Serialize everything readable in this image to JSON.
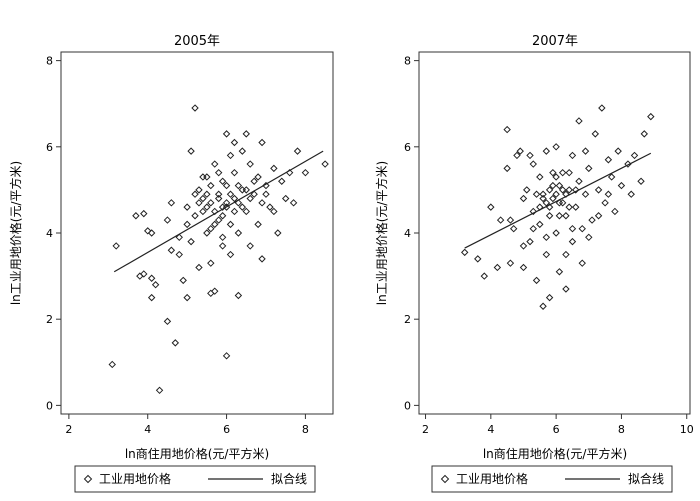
{
  "chart_data": [
    {
      "type": "scatter",
      "title": "2005年",
      "xlabel": "ln商住用地价格(元/平方米)",
      "ylabel": "ln工业用地价格(元/平方米)",
      "xlim": [
        1.8,
        8.7
      ],
      "ylim": [
        -0.2,
        8.2
      ],
      "xticks": [
        2,
        4,
        6,
        8
      ],
      "yticks": [
        0,
        2,
        4,
        6,
        8
      ],
      "series": [
        {
          "name": "工业用地价格",
          "kind": "points",
          "points": [
            [
              3.1,
              0.95
            ],
            [
              3.2,
              3.7
            ],
            [
              3.7,
              4.4
            ],
            [
              3.9,
              4.45
            ],
            [
              4.0,
              4.05
            ],
            [
              4.1,
              4.0
            ],
            [
              3.8,
              3.0
            ],
            [
              3.9,
              3.05
            ],
            [
              4.1,
              2.95
            ],
            [
              4.2,
              2.8
            ],
            [
              4.1,
              2.5
            ],
            [
              4.3,
              0.35
            ],
            [
              4.5,
              1.95
            ],
            [
              4.7,
              1.45
            ],
            [
              4.6,
              3.6
            ],
            [
              4.5,
              4.3
            ],
            [
              4.6,
              4.7
            ],
            [
              4.8,
              3.5
            ],
            [
              4.9,
              2.9
            ],
            [
              5.0,
              2.5
            ],
            [
              4.8,
              3.9
            ],
            [
              5.0,
              4.6
            ],
            [
              5.1,
              5.9
            ],
            [
              5.2,
              6.9
            ],
            [
              5.3,
              5.0
            ],
            [
              5.2,
              4.4
            ],
            [
              5.3,
              3.2
            ],
            [
              5.4,
              4.8
            ],
            [
              5.5,
              5.3
            ],
            [
              5.6,
              4.1
            ],
            [
              5.6,
              2.6
            ],
            [
              5.7,
              2.65
            ],
            [
              5.7,
              5.6
            ],
            [
              5.8,
              4.9
            ],
            [
              5.8,
              4.3
            ],
            [
              5.9,
              5.2
            ],
            [
              5.9,
              3.7
            ],
            [
              6.0,
              6.3
            ],
            [
              6.0,
              5.1
            ],
            [
              6.0,
              4.6
            ],
            [
              6.0,
              1.15
            ],
            [
              6.1,
              5.8
            ],
            [
              6.1,
              4.2
            ],
            [
              6.1,
              3.5
            ],
            [
              6.2,
              6.1
            ],
            [
              6.2,
              5.4
            ],
            [
              6.3,
              4.7
            ],
            [
              6.3,
              4.0
            ],
            [
              6.3,
              2.55
            ],
            [
              6.4,
              5.9
            ],
            [
              6.4,
              5.0
            ],
            [
              6.5,
              6.3
            ],
            [
              6.5,
              4.5
            ],
            [
              6.6,
              5.6
            ],
            [
              6.6,
              3.7
            ],
            [
              6.7,
              4.9
            ],
            [
              6.8,
              5.3
            ],
            [
              6.8,
              4.2
            ],
            [
              6.9,
              3.4
            ],
            [
              6.9,
              6.1
            ],
            [
              7.0,
              5.1
            ],
            [
              7.1,
              4.6
            ],
            [
              7.2,
              5.5
            ],
            [
              7.3,
              4.0
            ],
            [
              7.4,
              5.2
            ],
            [
              7.5,
              4.8
            ],
            [
              7.6,
              5.4
            ],
            [
              7.7,
              4.7
            ],
            [
              7.8,
              5.9
            ],
            [
              8.0,
              5.4
            ],
            [
              8.5,
              5.6
            ],
            [
              5.5,
              4.6
            ],
            [
              5.6,
              4.7
            ],
            [
              5.7,
              4.5
            ],
            [
              5.8,
              4.8
            ],
            [
              5.9,
              4.6
            ],
            [
              6.0,
              4.7
            ],
            [
              5.4,
              4.5
            ],
            [
              5.5,
              4.9
            ],
            [
              5.6,
              5.1
            ],
            [
              5.7,
              4.2
            ],
            [
              5.8,
              5.4
            ],
            [
              5.9,
              4.4
            ],
            [
              6.1,
              4.9
            ],
            [
              6.2,
              4.5
            ],
            [
              6.2,
              4.8
            ],
            [
              6.3,
              5.1
            ],
            [
              6.4,
              4.6
            ],
            [
              6.5,
              5.0
            ],
            [
              6.6,
              4.8
            ],
            [
              5.3,
              4.7
            ],
            [
              5.2,
              4.9
            ],
            [
              5.4,
              5.3
            ],
            [
              5.5,
              4.0
            ],
            [
              5.1,
              3.8
            ],
            [
              5.0,
              4.2
            ],
            [
              6.7,
              5.2
            ],
            [
              6.9,
              4.7
            ],
            [
              7.0,
              4.9
            ],
            [
              7.2,
              4.5
            ],
            [
              5.6,
              3.3
            ],
            [
              5.9,
              3.9
            ]
          ]
        },
        {
          "name": "拟合线",
          "kind": "line",
          "points": [
            [
              3.15,
              3.1
            ],
            [
              8.45,
              5.9
            ]
          ]
        }
      ]
    },
    {
      "type": "scatter",
      "title": "2007年",
      "xlabel": "ln商住用地价格(元/平方米)",
      "ylabel": "ln工业用地价格(元/平方米)",
      "xlim": [
        1.8,
        10.1
      ],
      "ylim": [
        -0.2,
        8.2
      ],
      "xticks": [
        2,
        4,
        6,
        8,
        10
      ],
      "yticks": [
        0,
        2,
        4,
        6,
        8
      ],
      "series": [
        {
          "name": "工业用地价格",
          "kind": "points",
          "points": [
            [
              3.2,
              3.55
            ],
            [
              3.6,
              3.4
            ],
            [
              3.8,
              3.0
            ],
            [
              4.0,
              4.6
            ],
            [
              4.2,
              3.2
            ],
            [
              4.3,
              4.3
            ],
            [
              4.5,
              5.5
            ],
            [
              4.5,
              6.4
            ],
            [
              4.6,
              3.3
            ],
            [
              4.7,
              4.1
            ],
            [
              4.8,
              5.8
            ],
            [
              4.9,
              5.9
            ],
            [
              5.0,
              3.2
            ],
            [
              5.0,
              4.8
            ],
            [
              5.1,
              5.0
            ],
            [
              5.2,
              3.8
            ],
            [
              5.3,
              4.5
            ],
            [
              5.3,
              5.6
            ],
            [
              5.4,
              2.9
            ],
            [
              5.5,
              4.2
            ],
            [
              5.5,
              5.3
            ],
            [
              5.6,
              2.3
            ],
            [
              5.6,
              4.8
            ],
            [
              5.7,
              3.5
            ],
            [
              5.7,
              5.9
            ],
            [
              5.8,
              4.6
            ],
            [
              5.8,
              2.5
            ],
            [
              5.9,
              5.1
            ],
            [
              6.0,
              4.0
            ],
            [
              6.0,
              6.0
            ],
            [
              6.1,
              4.7
            ],
            [
              6.1,
              3.1
            ],
            [
              6.2,
              5.4
            ],
            [
              6.3,
              4.4
            ],
            [
              6.3,
              2.7
            ],
            [
              6.4,
              5.0
            ],
            [
              6.5,
              3.8
            ],
            [
              6.5,
              5.8
            ],
            [
              6.6,
              4.6
            ],
            [
              6.7,
              6.6
            ],
            [
              6.7,
              5.2
            ],
            [
              6.8,
              3.3
            ],
            [
              6.9,
              4.9
            ],
            [
              7.0,
              5.5
            ],
            [
              7.1,
              4.3
            ],
            [
              7.2,
              6.3
            ],
            [
              7.3,
              5.0
            ],
            [
              7.4,
              6.9
            ],
            [
              7.5,
              4.7
            ],
            [
              7.6,
              5.7
            ],
            [
              7.7,
              5.3
            ],
            [
              7.8,
              4.5
            ],
            [
              7.9,
              5.9
            ],
            [
              8.0,
              5.1
            ],
            [
              8.2,
              5.6
            ],
            [
              8.4,
              5.8
            ],
            [
              8.6,
              5.2
            ],
            [
              8.7,
              6.3
            ],
            [
              8.9,
              6.7
            ],
            [
              5.6,
              4.9
            ],
            [
              5.7,
              4.7
            ],
            [
              5.8,
              5.0
            ],
            [
              5.9,
              4.8
            ],
            [
              6.0,
              4.9
            ],
            [
              6.1,
              5.1
            ],
            [
              6.2,
              4.7
            ],
            [
              6.3,
              4.9
            ],
            [
              6.4,
              4.6
            ],
            [
              5.5,
              4.6
            ],
            [
              5.4,
              4.9
            ],
            [
              6.0,
              5.3
            ],
            [
              6.2,
              5.0
            ],
            [
              6.4,
              5.4
            ],
            [
              6.6,
              5.0
            ],
            [
              5.8,
              4.4
            ],
            [
              5.9,
              5.4
            ],
            [
              6.1,
              4.4
            ],
            [
              5.3,
              4.1
            ],
            [
              6.8,
              4.1
            ],
            [
              7.0,
              3.9
            ],
            [
              5.0,
              3.7
            ],
            [
              4.6,
              4.3
            ],
            [
              6.9,
              5.9
            ],
            [
              7.6,
              4.9
            ],
            [
              5.2,
              5.8
            ],
            [
              6.5,
              4.1
            ],
            [
              5.7,
              3.9
            ],
            [
              6.3,
              3.5
            ],
            [
              7.3,
              4.4
            ],
            [
              8.3,
              4.9
            ]
          ]
        },
        {
          "name": "拟合线",
          "kind": "line",
          "points": [
            [
              3.2,
              3.65
            ],
            [
              8.9,
              5.85
            ]
          ]
        }
      ]
    }
  ],
  "legend": {
    "marker_label": "工业用地价格",
    "line_label": "拟合线"
  }
}
